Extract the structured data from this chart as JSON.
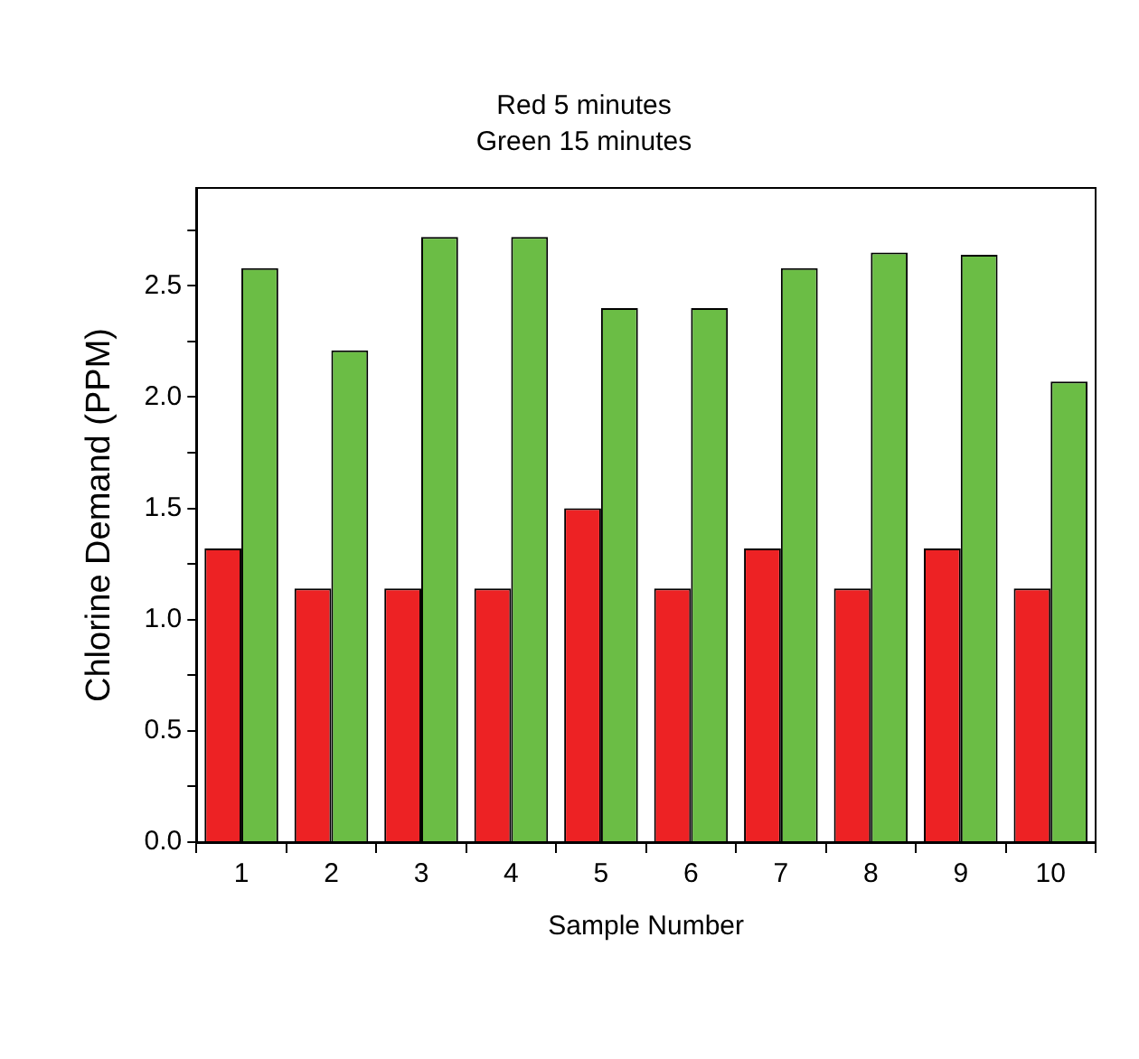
{
  "chart_data": {
    "type": "bar",
    "title": "Red 5 minutes",
    "subtitle": "Green 15 minutes",
    "xlabel": "Sample Number",
    "ylabel": "Chlorine Demand (PPM)",
    "categories": [
      "1",
      "2",
      "3",
      "4",
      "5",
      "6",
      "7",
      "8",
      "9",
      "10"
    ],
    "series": [
      {
        "color": "#ed2224",
        "values": [
          1.32,
          1.14,
          1.14,
          1.14,
          1.5,
          1.14,
          1.32,
          1.14,
          1.32,
          1.14
        ]
      },
      {
        "color": "#6bbd45",
        "values": [
          2.58,
          2.21,
          2.72,
          2.72,
          2.4,
          2.4,
          2.58,
          2.65,
          2.64,
          2.07
        ]
      }
    ],
    "ylim": [
      0,
      2.94
    ],
    "yticks": [
      "0.0",
      {
        "value": 0.25,
        "label": null
      },
      {
        "value": 0.5,
        "label": "0.5"
      },
      {
        "value": 0.75,
        "label": null
      },
      {
        "value": 1,
        "label": "1.0"
      },
      {
        "value": 1.25,
        "label": null
      },
      {
        "value": 1.5,
        "label": "1.5"
      },
      {
        "value": 1.75,
        "label": null
      },
      {
        "value": 2,
        "label": "2.0"
      },
      {
        "value": 2.25,
        "label": null
      },
      {
        "value": 2.5,
        "label": "2.5"
      },
      {
        "value": 2.75,
        "label": null
      }
    ],
    "grid": false,
    "legend": false
  }
}
